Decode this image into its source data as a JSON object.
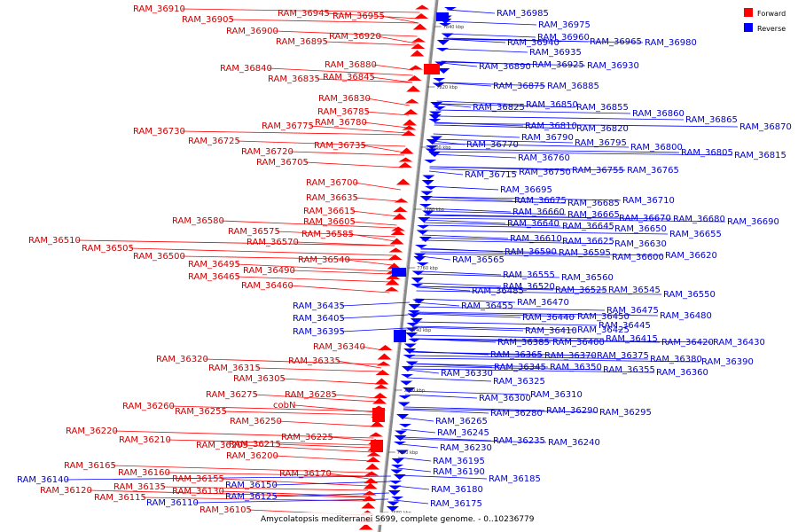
{
  "caption": "Amycolatopsis mediterranei S699, complete genome. - 0..10236779",
  "legend": [
    {
      "label": "Forward",
      "color": "#ff0000"
    },
    {
      "label": "Reverse",
      "color": "#0000ff"
    }
  ],
  "colors": {
    "forward_text": "#cc0000",
    "forward_fill": "#ff0000",
    "reverse_text": "#0000cc",
    "reverse_fill": "#0000ff",
    "backbone": "#888888"
  },
  "tick_labels": [
    "7840 kbp",
    "7820 kbp",
    "7800 kbp",
    "7780 kbp",
    "7760 kbp",
    "7740 kbp",
    "7720 kbp",
    "7700 kbp",
    "7680 kbp"
  ],
  "forward_labels": [
    "RAM_36910",
    "RAM_36945",
    "RAM_36955",
    "RAM_36905",
    "RAM_36900",
    "RAM_36920",
    "RAM_36895",
    "RAM_36880",
    "RAM_36840",
    "RAM_36835",
    "RAM_36845",
    "RAM_36830",
    "RAM_36785",
    "RAM_36780",
    "RAM_36775",
    "RAM_36730",
    "RAM_36725",
    "RAM_36735",
    "RAM_36720",
    "RAM_36705",
    "RAM_36700",
    "RAM_36635",
    "RAM_36615",
    "RAM_36580",
    "RAM_36605",
    "RAM_36575",
    "RAM_36585",
    "RAM_36570",
    "RAM_36510",
    "RAM_36505",
    "RAM_36500",
    "RAM_36540",
    "RAM_36495",
    "RAM_36490",
    "RAM_36465",
    "RAM_36460",
    "RAM_36340",
    "RAM_36320",
    "RAM_36335",
    "RAM_36315",
    "RAM_36305",
    "RAM_36275",
    "RAM_36285",
    "RAM_36260",
    "cobN",
    "RAM_36255",
    "RAM_36250",
    "RAM_36220",
    "RAM_36225",
    "RAM_36210",
    "RAM_36205",
    "RAM_36215",
    "RAM_36200",
    "RAM_36165",
    "RAM_36160",
    "RAM_36170",
    "RAM_36155",
    "RAM_36135",
    "RAM_36130",
    "RAM_36120",
    "RAM_36115",
    "RAM_36105"
  ],
  "reverse_labels": [
    "RAM_36985",
    "RAM_36975",
    "RAM_36960",
    "RAM_36965",
    "RAM_36980",
    "RAM_36940",
    "RAM_36935",
    "RAM_36925",
    "RAM_36930",
    "RAM_36890",
    "RAM_36875",
    "RAM_36885",
    "RAM_36825",
    "RAM_36850",
    "RAM_36855",
    "RAM_36860",
    "RAM_36865",
    "RAM_36870",
    "RAM_36810",
    "RAM_36820",
    "RAM_36790",
    "RAM_36795",
    "RAM_36800",
    "RAM_36805",
    "RAM_36815",
    "RAM_36770",
    "RAM_36760",
    "RAM_36715",
    "RAM_36750",
    "RAM_36755",
    "RAM_36765",
    "RAM_36695",
    "RAM_36675",
    "RAM_36685",
    "RAM_36710",
    "RAM_36660",
    "RAM_36665",
    "RAM_36670",
    "RAM_36680",
    "RAM_36690",
    "RAM_36640",
    "RAM_36645",
    "RAM_36650",
    "RAM_36655",
    "RAM_36610",
    "RAM_36625",
    "RAM_36630",
    "RAM_36590",
    "RAM_36595",
    "RAM_36600",
    "RAM_36620",
    "RAM_36565",
    "RAM_36555",
    "RAM_36560",
    "RAM_36485",
    "RAM_36520",
    "RAM_36525",
    "RAM_36545",
    "RAM_36550",
    "RAM_36455",
    "RAM_36470",
    "RAM_36475",
    "RAM_36480",
    "RAM_36435",
    "RAM_36440",
    "RAM_36450",
    "RAM_36445",
    "RAM_36405",
    "RAM_36410",
    "RAM_36425",
    "RAM_36415",
    "RAM_36420",
    "RAM_36430",
    "RAM_36395",
    "RAM_36385",
    "RAM_36400",
    "RAM_36365",
    "RAM_36370",
    "RAM_36375",
    "RAM_36380",
    "RAM_36390",
    "RAM_36345",
    "RAM_36350",
    "RAM_36355",
    "RAM_36360",
    "RAM_36330",
    "RAM_36325",
    "RAM_36300",
    "RAM_36310",
    "RAM_36280",
    "RAM_36290",
    "RAM_36295",
    "RAM_36265",
    "RAM_36245",
    "RAM_36235",
    "RAM_36240",
    "RAM_36230",
    "RAM_36195",
    "RAM_36190",
    "RAM_36185",
    "RAM_36180",
    "RAM_36175",
    "RAM_36150",
    "RAM_36125",
    "RAM_36110",
    "RAM_36140"
  ]
}
